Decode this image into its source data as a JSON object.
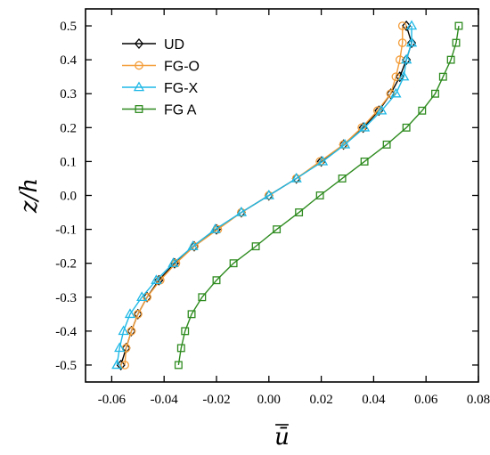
{
  "chart_data": {
    "type": "line",
    "xlabel": "ū",
    "ylabel": "z/h",
    "xlim": [
      -0.07,
      0.08
    ],
    "ylim": [
      -0.55,
      0.55
    ],
    "x_ticks": [
      -0.06,
      -0.04,
      -0.02,
      0.0,
      0.02,
      0.04,
      0.06,
      0.08
    ],
    "x_tick_labels": [
      "-0.06",
      "-0.04",
      "-0.02",
      "0.00",
      "0.02",
      "0.04",
      "0.06",
      "0.08"
    ],
    "y_ticks": [
      -0.5,
      -0.4,
      -0.3,
      -0.2,
      -0.1,
      0.0,
      0.1,
      0.2,
      0.3,
      0.4,
      0.5
    ],
    "y_tick_labels": [
      "-0.5",
      "-0.4",
      "-0.3",
      "-0.2",
      "-0.1",
      "0.0",
      "0.1",
      "0.2",
      "0.3",
      "0.4",
      "0.5"
    ],
    "grid": false,
    "legend_position": "top-left",
    "z": [
      -0.5,
      -0.45,
      -0.4,
      -0.35,
      -0.3,
      -0.25,
      -0.2,
      -0.15,
      -0.1,
      -0.05,
      0.0,
      0.05,
      0.1,
      0.15,
      0.2,
      0.25,
      0.3,
      0.35,
      0.4,
      0.45,
      0.5
    ],
    "series": [
      {
        "name": "UD",
        "color": "#000000",
        "marker": "diamond",
        "values": [
          -0.0565,
          -0.0545,
          -0.0525,
          -0.05,
          -0.0465,
          -0.042,
          -0.036,
          -0.0285,
          -0.02,
          -0.0105,
          0.0,
          0.0105,
          0.02,
          0.0285,
          0.036,
          0.042,
          0.0465,
          0.05,
          0.0525,
          0.0545,
          0.0525
        ]
      },
      {
        "name": "FG-O",
        "color": "#f39c38",
        "marker": "circle",
        "values": [
          -0.055,
          -0.0545,
          -0.0525,
          -0.05,
          -0.0465,
          -0.0415,
          -0.0355,
          -0.0285,
          -0.0195,
          -0.0105,
          0.0,
          0.0105,
          0.0195,
          0.0285,
          0.0355,
          0.0415,
          0.0465,
          0.0485,
          0.05,
          0.051,
          0.051
        ]
      },
      {
        "name": "FG-X",
        "color": "#1fb8e6",
        "marker": "triangle",
        "values": [
          -0.058,
          -0.057,
          -0.0555,
          -0.053,
          -0.0485,
          -0.043,
          -0.0365,
          -0.029,
          -0.0205,
          -0.0105,
          0.0,
          0.0105,
          0.0205,
          0.029,
          0.0365,
          0.043,
          0.0485,
          0.0515,
          0.0525,
          0.0545,
          0.0545
        ]
      },
      {
        "name": "FG A",
        "color": "#2e8b1f",
        "marker": "square",
        "values": [
          -0.0345,
          -0.0335,
          -0.032,
          -0.0295,
          -0.0255,
          -0.02,
          -0.0135,
          -0.005,
          0.003,
          0.0115,
          0.0195,
          0.028,
          0.0365,
          0.045,
          0.0525,
          0.0585,
          0.0635,
          0.0665,
          0.0695,
          0.0715,
          0.0725
        ]
      }
    ]
  }
}
